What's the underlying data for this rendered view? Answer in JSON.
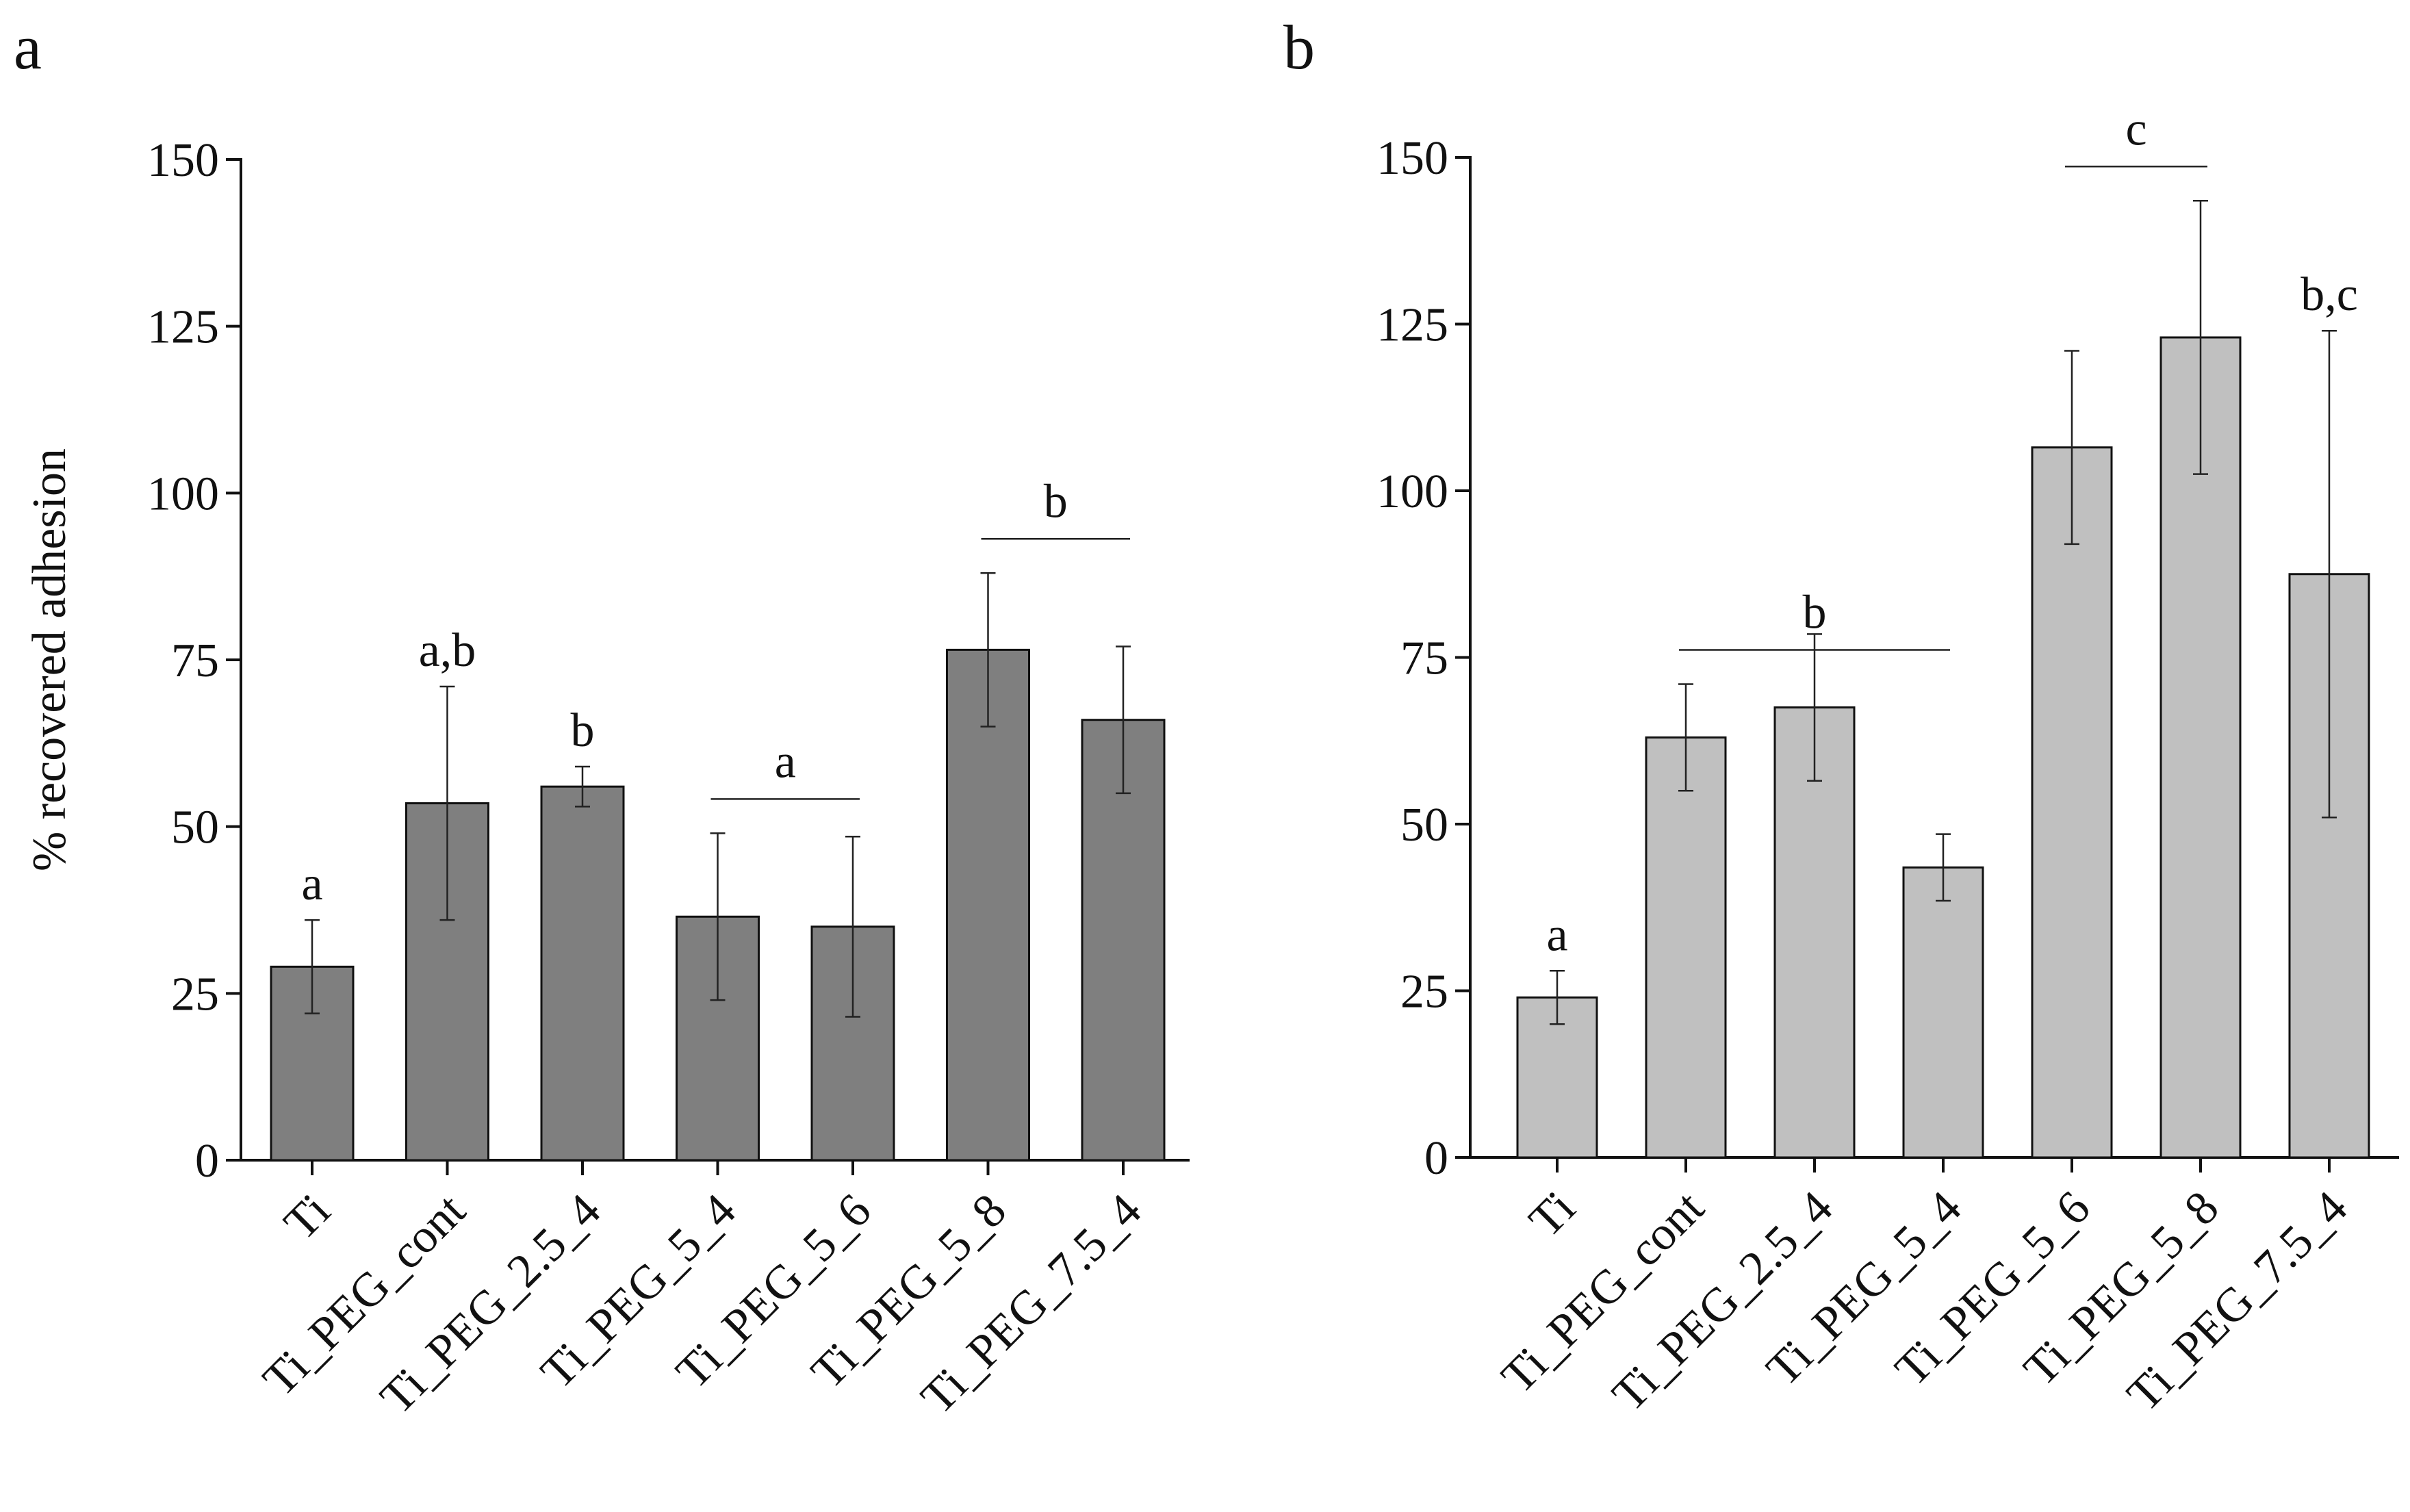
{
  "chart_data": [
    {
      "panel": "a",
      "type": "bar",
      "ylabel": "% recovered adhesion",
      "xlabel": "",
      "ylim": [
        0,
        150
      ],
      "yticks": [
        0,
        25,
        50,
        75,
        100,
        125,
        150
      ],
      "categories": [
        "Ti",
        "Ti_PEG_cont",
        "Ti_PEG_2.5_4",
        "Ti_PEG_5_4",
        "Ti_PEG_5_6",
        "Ti_PEG_5_8",
        "Ti_PEG_7.5_4"
      ],
      "values": [
        29,
        53.5,
        56,
        36.5,
        35,
        76.5,
        66
      ],
      "errors": [
        7,
        17.5,
        3,
        12.5,
        13.5,
        11.5,
        11
      ],
      "bar_color": "#7f7f7f",
      "annotations": [
        {
          "text": "a",
          "target": [
            0
          ]
        },
        {
          "text": "a,b",
          "target": [
            1
          ]
        },
        {
          "text": "b",
          "target": [
            2
          ]
        },
        {
          "text": "a",
          "target": [
            3,
            4
          ]
        },
        {
          "text": "b",
          "target": [
            5,
            6
          ]
        }
      ]
    },
    {
      "panel": "b",
      "type": "bar",
      "ylabel": "",
      "xlabel": "",
      "ylim": [
        0,
        150
      ],
      "yticks": [
        0,
        25,
        50,
        75,
        100,
        125,
        150
      ],
      "categories": [
        "Ti",
        "Ti_PEG_cont",
        "Ti_PEG_2.5_4",
        "Ti_PEG_5_4",
        "Ti_PEG_5_6",
        "Ti_PEG_5_8",
        "Ti_PEG_7.5_4"
      ],
      "values": [
        24,
        63,
        67.5,
        43.5,
        106.5,
        123,
        87.5
      ],
      "errors": [
        4,
        8,
        11,
        5,
        14.5,
        20.5,
        36.5
      ],
      "bar_color": "#c0c0c0",
      "annotations": [
        {
          "text": "a",
          "target": [
            0
          ]
        },
        {
          "text": "b",
          "target": [
            1,
            3
          ]
        },
        {
          "text": "c",
          "target": [
            4,
            5
          ]
        },
        {
          "text": "b,c",
          "target": [
            6
          ]
        }
      ]
    }
  ]
}
